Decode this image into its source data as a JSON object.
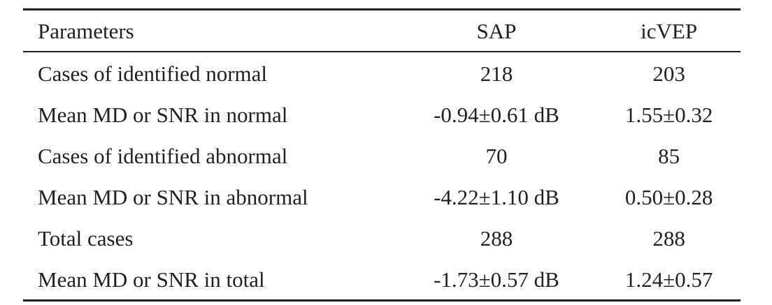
{
  "table": {
    "columns": [
      "Parameters",
      "SAP",
      "icVEP"
    ],
    "rows": [
      {
        "parameter": "Cases of identified normal",
        "sap": "218",
        "icvep": "203"
      },
      {
        "parameter": "Mean MD or SNR in normal",
        "sap": "-0.94±0.61 dB",
        "icvep": "1.55±0.32"
      },
      {
        "parameter": "Cases of identified abnormal",
        "sap": "70",
        "icvep": "85"
      },
      {
        "parameter": "Mean MD or SNR in abnormal",
        "sap": "-4.22±1.10 dB",
        "icvep": "0.50±0.28"
      },
      {
        "parameter": "Total cases",
        "sap": "288",
        "icvep": "288"
      },
      {
        "parameter": "Mean MD or SNR in total",
        "sap": "-1.73±0.57 dB",
        "icvep": "1.24±0.57"
      }
    ]
  }
}
